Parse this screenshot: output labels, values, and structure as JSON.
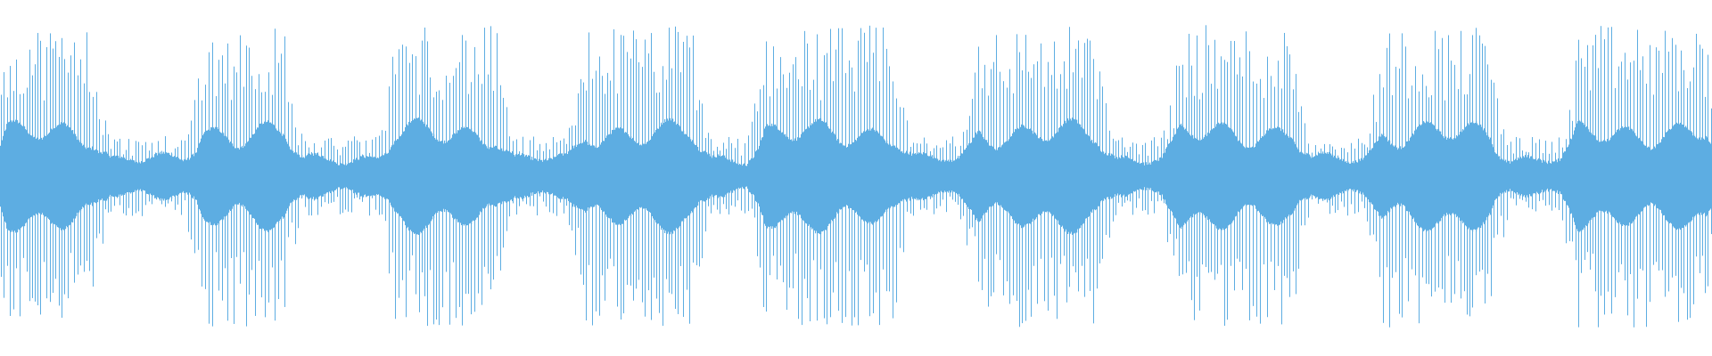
{
  "waveform": {
    "icon": "audio-waveform",
    "color": "#5dade2",
    "background": "#ffffff"
  }
}
